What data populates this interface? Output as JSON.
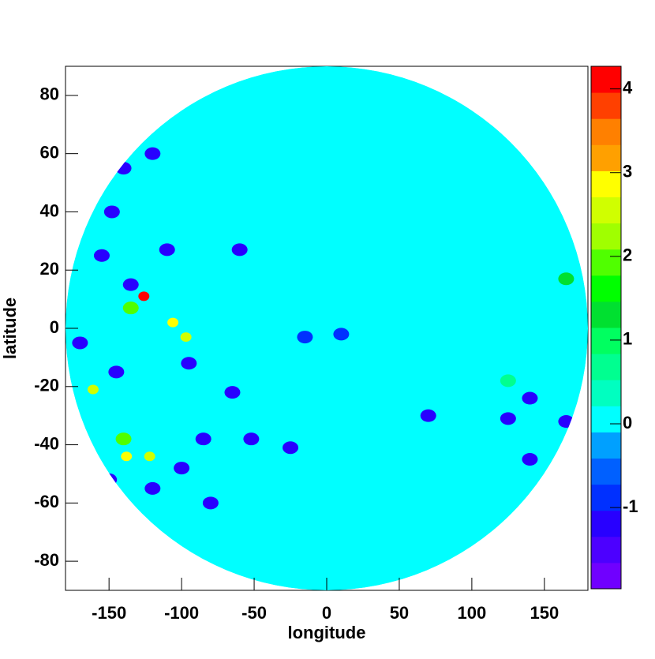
{
  "chart_data": {
    "type": "contour",
    "x_label": "longitude",
    "y_label": "latitude",
    "xlim": [
      -180,
      180
    ],
    "ylim": [
      -90,
      90
    ],
    "xticks": [
      -150,
      -100,
      -50,
      0,
      50,
      100,
      150
    ],
    "yticks": [
      -80,
      -60,
      -40,
      -20,
      0,
      20,
      40,
      60,
      80
    ],
    "zlim": [
      -1.97,
      4.27
    ],
    "zticks": [
      -1,
      0,
      1,
      2,
      3,
      4
    ],
    "palette": [
      "#7000ff",
      "#4c00ff",
      "#2800ff",
      "#0030ff",
      "#0060ff",
      "#00a0ff",
      "#00ffff",
      "#00ffc0",
      "#00ff90",
      "#00ff60",
      "#00e030",
      "#00ff00",
      "#50ff00",
      "#a0ff00",
      "#d0ff00",
      "#ffff00",
      "#ffa000",
      "#ff8000",
      "#ff4000",
      "#ff0000"
    ],
    "background_value": 0,
    "points": {
      "x": [
        -126,
        -106,
        -97,
        -161,
        -138,
        -122,
        -135,
        -140,
        -135,
        -170,
        -145,
        -65,
        -52,
        -25,
        -60,
        -110,
        -155,
        -148,
        -120,
        -140,
        -95,
        -150,
        -120,
        -100,
        -85,
        -80,
        125,
        140,
        165,
        70,
        140,
        10,
        -15,
        165,
        125
      ],
      "y": [
        11,
        2,
        -3,
        -21,
        -44,
        -44,
        7,
        -38,
        15,
        -5,
        -15,
        -22,
        -38,
        -41,
        27,
        27,
        25,
        40,
        60,
        55,
        -12,
        -52,
        -55,
        -48,
        -38,
        -60,
        -31,
        -24,
        -32,
        -30,
        -45,
        -2,
        -3,
        17,
        -18
      ],
      "values": [
        4,
        3,
        2.5,
        2.5,
        3,
        2.5,
        2,
        2,
        -1.3,
        -1.3,
        -1.3,
        -1.3,
        -1.3,
        -1.3,
        -1.3,
        -1.3,
        -1.3,
        -1.3,
        -1.3,
        -1.3,
        -1.3,
        -1.3,
        -1.3,
        -1.3,
        -1.3,
        -1.3,
        -1.3,
        -1.3,
        -1.3,
        -1.3,
        -1.3,
        -1,
        -1,
        1.2,
        0.8
      ]
    }
  }
}
